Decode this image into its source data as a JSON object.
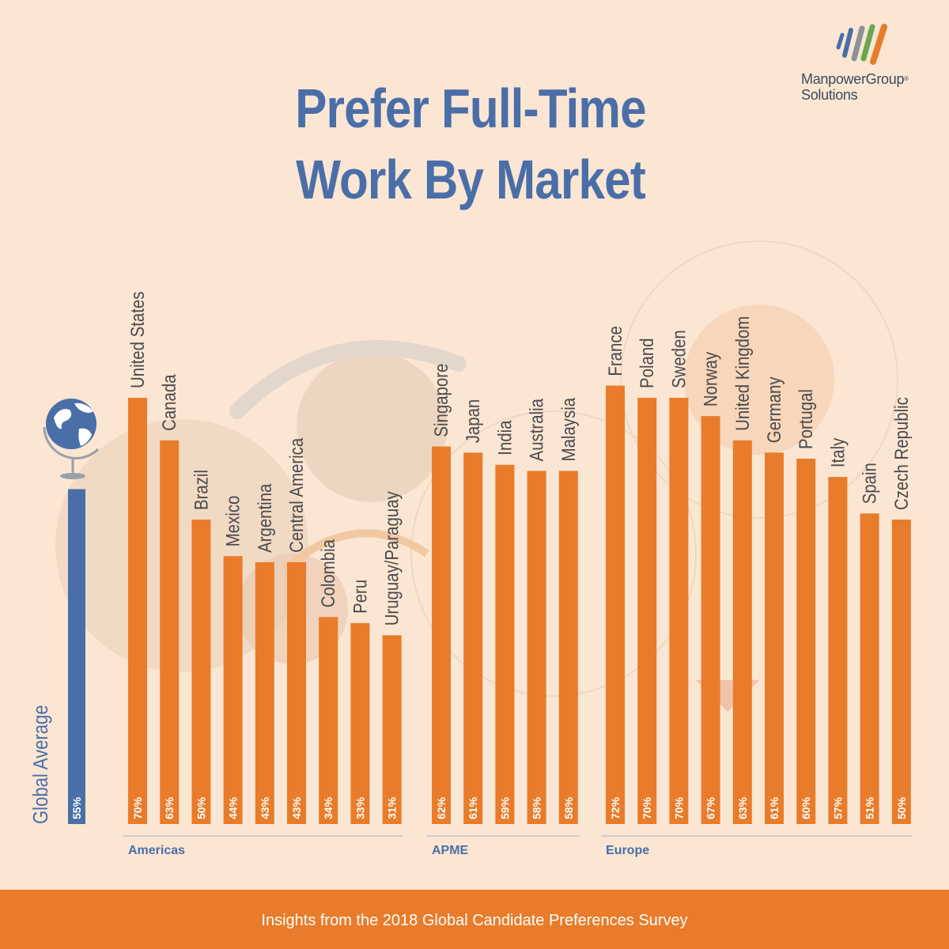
{
  "brand": {
    "name": "ManpowerGroup",
    "reg_mark": "®",
    "sub": "Solutions",
    "colors": {
      "blue": "#4a6ea8",
      "orange": "#e87c2a",
      "gray": "#8c9298",
      "background": "#fbe6d3"
    }
  },
  "footer": {
    "text": "Insights from the 2018 Global Candidate Preferences Survey"
  },
  "chart_data": {
    "type": "bar",
    "title": "Prefer Full-Time Work By Market",
    "title_lines": [
      "Prefer Full-Time",
      "Work By Market"
    ],
    "value_unit": "%",
    "ylim": [
      0,
      100
    ],
    "grid": false,
    "legend": "none",
    "global_average": {
      "label": "Global Average",
      "value": 55,
      "color": "#4a6ea8",
      "icon": "globe-icon"
    },
    "bar_color": "#e87c2a",
    "groups": [
      {
        "name": "Americas",
        "categories": [
          "United States",
          "Canada",
          "Brazil",
          "Mexico",
          "Argentina",
          "Central America",
          "Colombia",
          "Peru",
          "Uruguay/Paraguay"
        ],
        "values": [
          70,
          63,
          50,
          44,
          43,
          43,
          34,
          33,
          31
        ]
      },
      {
        "name": "APME",
        "categories": [
          "Singapore",
          "Japan",
          "India",
          "Australia",
          "Malaysia"
        ],
        "values": [
          62,
          61,
          59,
          58,
          58
        ]
      },
      {
        "name": "Europe",
        "categories": [
          "France",
          "Poland",
          "Sweden",
          "Norway",
          "United Kingdom",
          "Germany",
          "Portugal",
          "Italy",
          "Spain",
          "Czech Republic"
        ],
        "values": [
          72,
          70,
          70,
          67,
          63,
          61,
          60,
          57,
          51,
          50
        ]
      }
    ]
  }
}
